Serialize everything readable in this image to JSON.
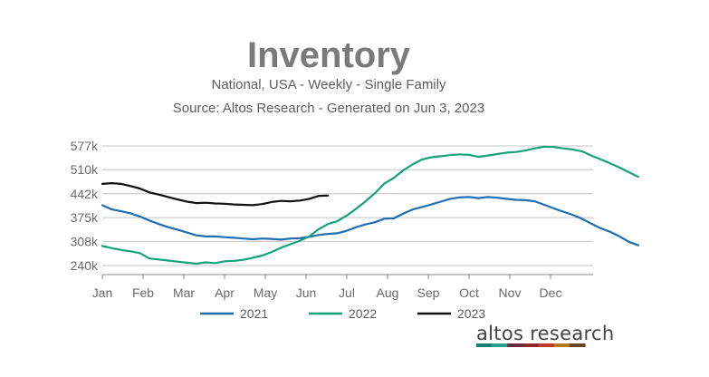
{
  "chart_data": {
    "type": "line",
    "title": "Inventory",
    "subtitle": "National, USA - Weekly - Single Family",
    "source": "Source: Altos Research - Generated on Jun 3, 2023",
    "xlabel": "",
    "ylabel": "",
    "ylim": [
      240000,
      577000
    ],
    "y_ticks": [
      240000,
      308000,
      375000,
      442000,
      510000,
      577000
    ],
    "y_tick_labels": [
      "240k",
      "308k",
      "375k",
      "442k",
      "510k",
      "577k"
    ],
    "x_range_weeks": [
      0,
      52
    ],
    "month_labels": [
      "Jan",
      "Feb",
      "Mar",
      "Apr",
      "May",
      "Jun",
      "Jul",
      "Aug",
      "Sep",
      "Oct",
      "Nov",
      "Dec"
    ],
    "legend_position": "bottom",
    "grid": true,
    "series": [
      {
        "name": "2021",
        "color": "#1f6db3",
        "points": [
          [
            0,
            410000
          ],
          [
            1,
            398000
          ],
          [
            2,
            393000
          ],
          [
            3,
            387000
          ],
          [
            4,
            378000
          ],
          [
            5,
            367000
          ],
          [
            6,
            357000
          ],
          [
            7,
            348000
          ],
          [
            8,
            341000
          ],
          [
            9,
            333000
          ],
          [
            10,
            325000
          ],
          [
            11,
            322000
          ],
          [
            12,
            322000
          ],
          [
            13,
            320000
          ],
          [
            14,
            318000
          ],
          [
            15,
            316000
          ],
          [
            16,
            314000
          ],
          [
            17,
            316000
          ],
          [
            18,
            315000
          ],
          [
            19,
            313000
          ],
          [
            20,
            316000
          ],
          [
            21,
            317000
          ],
          [
            22,
            321000
          ],
          [
            23,
            326000
          ],
          [
            24,
            329000
          ],
          [
            25,
            331000
          ],
          [
            26,
            338000
          ],
          [
            27,
            348000
          ],
          [
            28,
            356000
          ],
          [
            29,
            362000
          ],
          [
            30,
            372000
          ],
          [
            31,
            373000
          ],
          [
            32,
            386000
          ],
          [
            33,
            398000
          ],
          [
            34,
            405000
          ],
          [
            35,
            412000
          ],
          [
            36,
            420000
          ],
          [
            37,
            428000
          ],
          [
            38,
            432000
          ],
          [
            39,
            433000
          ],
          [
            40,
            430000
          ],
          [
            41,
            433000
          ],
          [
            42,
            431000
          ],
          [
            43,
            428000
          ],
          [
            44,
            425000
          ],
          [
            45,
            424000
          ],
          [
            46,
            421000
          ],
          [
            47,
            411000
          ],
          [
            48,
            401000
          ],
          [
            49,
            392000
          ],
          [
            50,
            383000
          ],
          [
            51,
            372000
          ],
          [
            52,
            358000
          ],
          [
            53,
            345000
          ],
          [
            54,
            335000
          ],
          [
            55,
            322000
          ],
          [
            56,
            307000
          ],
          [
            57,
            297000
          ]
        ]
      },
      {
        "name": "2022",
        "color": "#13a37a",
        "points": [
          [
            0,
            295000
          ],
          [
            1,
            289000
          ],
          [
            2,
            284000
          ],
          [
            3,
            280000
          ],
          [
            4,
            275000
          ],
          [
            5,
            260000
          ],
          [
            6,
            257000
          ],
          [
            7,
            254000
          ],
          [
            8,
            251000
          ],
          [
            9,
            248000
          ],
          [
            10,
            245000
          ],
          [
            11,
            249000
          ],
          [
            12,
            247000
          ],
          [
            13,
            252000
          ],
          [
            14,
            253000
          ],
          [
            15,
            256000
          ],
          [
            16,
            262000
          ],
          [
            17,
            268000
          ],
          [
            18,
            278000
          ],
          [
            19,
            290000
          ],
          [
            20,
            300000
          ],
          [
            21,
            310000
          ],
          [
            22,
            322000
          ],
          [
            23,
            342000
          ],
          [
            24,
            357000
          ],
          [
            25,
            365000
          ],
          [
            26,
            381000
          ],
          [
            27,
            400000
          ],
          [
            28,
            421000
          ],
          [
            29,
            444000
          ],
          [
            30,
            471000
          ],
          [
            31,
            487000
          ],
          [
            32,
            508000
          ],
          [
            33,
            525000
          ],
          [
            34,
            539000
          ],
          [
            35,
            545000
          ],
          [
            36,
            548000
          ],
          [
            37,
            551000
          ],
          [
            38,
            553000
          ],
          [
            39,
            552000
          ],
          [
            40,
            546000
          ],
          [
            41,
            550000
          ],
          [
            42,
            554000
          ],
          [
            43,
            558000
          ],
          [
            44,
            560000
          ],
          [
            45,
            564000
          ],
          [
            46,
            570000
          ],
          [
            47,
            575000
          ],
          [
            48,
            574000
          ],
          [
            49,
            570000
          ],
          [
            50,
            567000
          ],
          [
            51,
            562000
          ],
          [
            52,
            550000
          ],
          [
            53,
            539000
          ],
          [
            54,
            528000
          ],
          [
            55,
            516000
          ],
          [
            56,
            503000
          ],
          [
            57,
            490000
          ]
        ]
      },
      {
        "name": "2023",
        "color": "#111111",
        "points": [
          [
            0,
            470000
          ],
          [
            1,
            472000
          ],
          [
            2,
            470000
          ],
          [
            3,
            464000
          ],
          [
            4,
            457000
          ],
          [
            5,
            446000
          ],
          [
            6,
            440000
          ],
          [
            7,
            433000
          ],
          [
            8,
            426000
          ],
          [
            9,
            420000
          ],
          [
            10,
            416000
          ],
          [
            11,
            417000
          ],
          [
            12,
            415000
          ],
          [
            13,
            414000
          ],
          [
            14,
            412000
          ],
          [
            15,
            411000
          ],
          [
            16,
            410000
          ],
          [
            17,
            413000
          ],
          [
            18,
            419000
          ],
          [
            19,
            422000
          ],
          [
            20,
            421000
          ],
          [
            21,
            423000
          ],
          [
            22,
            428000
          ],
          [
            23,
            436000
          ],
          [
            24,
            437000
          ]
        ]
      }
    ]
  },
  "brand": {
    "text": "altos research",
    "bar_colors": [
      "#1a7f6e",
      "#2a9d8f",
      "#6b2d3e",
      "#8e2a2a",
      "#c0392b",
      "#b7791f",
      "#6b4423"
    ]
  }
}
